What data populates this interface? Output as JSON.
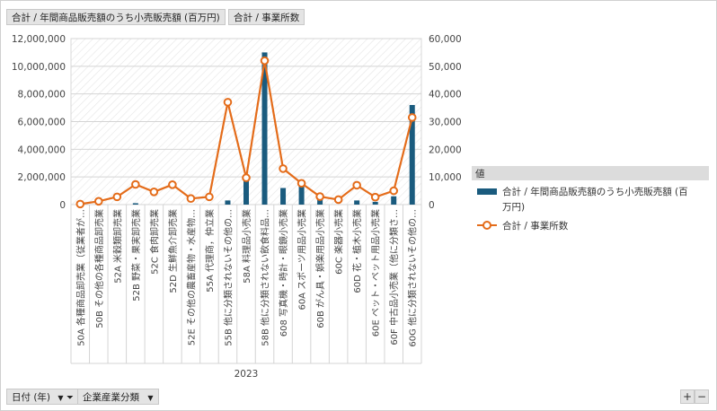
{
  "field_buttons": {
    "values_field_1": "合計 / 年間商品販売額のうち小売販売額 (百万円)",
    "values_field_2": "合計 / 事業所数",
    "date_field": "日付 (年)",
    "category_field": "企業産業分類"
  },
  "legend": {
    "header": "値",
    "items": [
      {
        "text": "合計 / 年間商品販売額のうち小売販売額 (百万円)",
        "color": "#1a5b7e"
      },
      {
        "text": "合計 / 事業所数",
        "color": "#e46c1a"
      }
    ]
  },
  "chart_data": {
    "type": "bar",
    "group_label": "2023",
    "categories": [
      "50A 各種商品卸売業（従業者が…",
      "50B その他の各種商品卸売業",
      "52A 米穀類卸売業",
      "52B 野菜・果実卸売業",
      "52C 食肉卸売業",
      "52D 生鮮魚介卸売業",
      "52E その他の農畜産物・水産物…",
      "55A 代理商，仲立業",
      "55B 他に分類されないその他の…",
      "58A 料理品小売業",
      "58B 他に分類されない飲食料品…",
      "608 写真機・時計・眼鏡小売業",
      "60A スポーツ用品小売業",
      "60B がん具・娯楽用品小売業",
      "60C 楽器小売業",
      "60D 花・植木小売業",
      "60E ペット・ペット用品小売業",
      "60F 中古品小売業（他に分類さ…",
      "60G 他に分類されないその他の…"
    ],
    "series": [
      {
        "name": "合計 / 年間商品販売額のうち小売販売額 (百万円)",
        "type": "bar",
        "axis": "left",
        "values": [
          0,
          0,
          0,
          100000,
          0,
          0,
          0,
          0,
          300000,
          1800000,
          11000000,
          1200000,
          1400000,
          400000,
          0,
          300000,
          200000,
          600000,
          7200000
        ]
      },
      {
        "name": "合計 / 事業所数",
        "type": "line",
        "axis": "right",
        "values": [
          200,
          1200,
          2800,
          7300,
          4600,
          7200,
          2200,
          2800,
          37000,
          9700,
          52000,
          13000,
          7700,
          2900,
          1800,
          7000,
          2700,
          5000,
          31500
        ]
      }
    ],
    "y_left": {
      "min": 0,
      "max": 12000000,
      "tick_labels": [
        "0",
        "2,000,000",
        "4,000,000",
        "6,000,000",
        "8,000,000",
        "10,000,000",
        "12,000,000"
      ]
    },
    "y_right": {
      "min": 0,
      "max": 60000,
      "tick_labels": [
        "0",
        "10,000",
        "20,000",
        "30,000",
        "40,000",
        "50,000",
        "60,000"
      ]
    },
    "colors": {
      "bar": "#1a5b7e",
      "line": "#e46c1a"
    }
  }
}
